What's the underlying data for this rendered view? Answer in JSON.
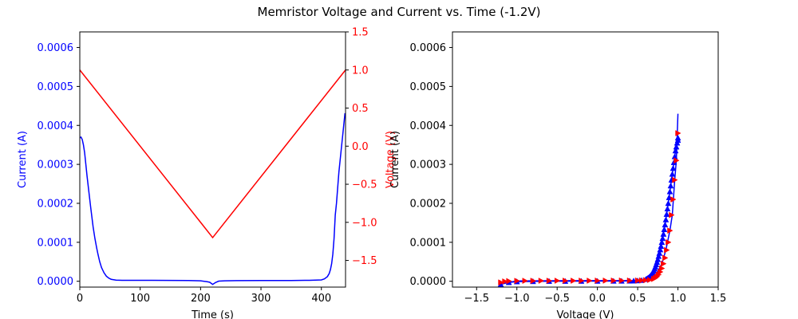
{
  "figure": {
    "title": "Memristor Voltage and Current vs. Time (-1.2V)"
  },
  "colors": {
    "current": "#0000ff",
    "voltage": "#ff0000",
    "axis": "#000000"
  },
  "chart_data": [
    {
      "type": "line",
      "title": "",
      "xlabel": "Time (s)",
      "ylabel": "Current (A)",
      "ylabel_right": "Voltage (V)",
      "xlim": [
        0,
        440
      ],
      "ylim": [
        -1.5e-05,
        0.00064
      ],
      "ylim_right": [
        -1.85,
        1.5
      ],
      "xticks": [
        0,
        100,
        200,
        300,
        400
      ],
      "yticks": [
        0.0,
        0.0001,
        0.0002,
        0.0003,
        0.0004,
        0.0005,
        0.0006
      ],
      "yticks_right": [
        -1.5,
        -1.0,
        -0.5,
        0.0,
        0.5,
        1.0,
        1.5
      ],
      "yticklabels": [
        "0.0000",
        "0.0001",
        "0.0002",
        "0.0003",
        "0.0004",
        "0.0005",
        "0.0006"
      ],
      "yticklabels_right": [
        "−1.5",
        "−1.0",
        "−0.5",
        "0.0",
        "0.5",
        "1.0",
        "1.5"
      ],
      "grid": false,
      "series": [
        {
          "axis": "left",
          "color": "#0000ff",
          "x": [
            0,
            2,
            4,
            6,
            8,
            10,
            12,
            15,
            18,
            20,
            22,
            25,
            28,
            30,
            33,
            36,
            40,
            44,
            48,
            52,
            56,
            60,
            70,
            80,
            100,
            120,
            150,
            180,
            200,
            210,
            215,
            220,
            225,
            230,
            240,
            260,
            300,
            350,
            380,
            400,
            405,
            410,
            413,
            415,
            417,
            419,
            421,
            423,
            425,
            427,
            429,
            431,
            433,
            435,
            437,
            439,
            440
          ],
          "y": [
            0.000368,
            0.00037,
            0.000364,
            0.00035,
            0.00033,
            0.0003,
            0.00027,
            0.00023,
            0.00019,
            0.000165,
            0.00014,
            0.00011,
            8.5e-05,
            7e-05,
            5e-05,
            3.5e-05,
            2.2e-05,
            1.3e-05,
            8e-06,
            5e-06,
            4e-06,
            3e-06,
            2.5e-06,
            2.5e-06,
            2.5e-06,
            2.5e-06,
            2.2e-06,
            1.8e-06,
            1.2e-06,
            -1e-06,
            -2.5e-06,
            -8e-06,
            -3e-06,
            3e-07,
            1.2e-06,
            1.6e-06,
            1.8e-06,
            2e-06,
            2.5e-06,
            3.5e-06,
            6e-06,
            1.2e-05,
            2e-05,
            3e-05,
            4.5e-05,
            7e-05,
            0.00011,
            0.00017,
            0.0002,
            0.00024,
            0.00028,
            0.00031,
            0.00034,
            0.00037,
            0.0004,
            0.00043,
            0.00043
          ]
        },
        {
          "axis": "right",
          "color": "#ff0000",
          "x": [
            0,
            220,
            440
          ],
          "y": [
            1.0,
            -1.2,
            1.0
          ]
        }
      ]
    },
    {
      "type": "scatter",
      "title": "",
      "xlabel": "Voltage (V)",
      "ylabel": "Current (A)",
      "xlim": [
        -1.8,
        1.5
      ],
      "ylim": [
        -1.5e-05,
        0.00064
      ],
      "xticks": [
        -1.5,
        -1.0,
        -0.5,
        0.0,
        0.5,
        1.0,
        1.5
      ],
      "xticklabels": [
        "−1.5",
        "−1.0",
        "−0.5",
        "0.0",
        "0.5",
        "1.0",
        "1.5"
      ],
      "yticks": [
        0.0,
        0.0001,
        0.0002,
        0.0003,
        0.0004,
        0.0005,
        0.0006
      ],
      "yticklabels": [
        "0.0000",
        "0.0001",
        "0.0002",
        "0.0003",
        "0.0004",
        "0.0005",
        "0.0006"
      ],
      "grid": false,
      "series": [
        {
          "color": "#0000ff",
          "marker": "triangle",
          "x": [
            1.0,
            1.0,
            0.99,
            0.98,
            0.97,
            0.96,
            0.95,
            0.94,
            0.93,
            0.92,
            0.91,
            0.9,
            0.89,
            0.88,
            0.87,
            0.86,
            0.85,
            0.84,
            0.83,
            0.82,
            0.81,
            0.8,
            0.79,
            0.78,
            0.77,
            0.76,
            0.75,
            0.74,
            0.73,
            0.72,
            0.71,
            0.7,
            0.69,
            0.68,
            0.67,
            0.66,
            0.65,
            0.64,
            0.63,
            0.62,
            0.61,
            0.6,
            0.55,
            0.5,
            0.45,
            0.4,
            0.3,
            0.2,
            0.0,
            -0.2,
            -0.4,
            -0.6,
            -0.8,
            -1.0,
            -1.1,
            -1.2
          ],
          "y": [
            0.000368,
            0.000362,
            0.000355,
            0.000345,
            0.000335,
            0.00032,
            0.000305,
            0.00029,
            0.000275,
            0.00026,
            0.000245,
            0.00023,
            0.000215,
            0.0002,
            0.000186,
            0.000172,
            0.000158,
            0.000145,
            0.000133,
            0.000121,
            0.00011,
            0.0001,
            9e-05,
            8.1e-05,
            7.2e-05,
            6.4e-05,
            5.6e-05,
            4.9e-05,
            4.3e-05,
            3.7e-05,
            3.2e-05,
            2.7e-05,
            2.3e-05,
            2e-05,
            1.7e-05,
            1.4e-05,
            1.2e-05,
            1e-05,
            8.5e-06,
            7e-06,
            5.8e-06,
            4.8e-06,
            2.5e-06,
            1.5e-06,
            1e-06,
            8e-07,
            6e-07,
            5e-07,
            4e-07,
            3e-07,
            2e-07,
            1e-07,
            -5e-07,
            -1e-06,
            -3e-06,
            -8e-06
          ]
        },
        {
          "color": "#ff0000",
          "marker": "triangle",
          "x": [
            -1.2,
            -1.15,
            -1.1,
            -1.0,
            -0.9,
            -0.8,
            -0.7,
            -0.6,
            -0.5,
            -0.4,
            -0.3,
            -0.2,
            -0.1,
            0.0,
            0.1,
            0.2,
            0.3,
            0.4,
            0.5,
            0.55,
            0.6,
            0.65,
            0.7,
            0.72,
            0.74,
            0.76,
            0.78,
            0.8,
            0.82,
            0.84,
            0.86,
            0.88,
            0.9,
            0.92,
            0.94,
            0.96,
            0.98,
            1.0
          ],
          "y": [
            -3e-06,
            -5e-07,
            5e-07,
            1e-06,
            1.2e-06,
            1.2e-06,
            1.3e-06,
            1.3e-06,
            1.4e-06,
            1.4e-06,
            1.4e-06,
            1.5e-06,
            1.5e-06,
            1.6e-06,
            1.6e-06,
            1.7e-06,
            1.8e-06,
            1.8e-06,
            2e-06,
            2.2e-06,
            2.8e-06,
            3.5e-06,
            6e-06,
            8.5e-06,
            1.2e-05,
            1.7e-05,
            2.4e-05,
            3.3e-05,
            4.5e-05,
            6e-05,
            8e-05,
            0.0001,
            0.00013,
            0.00017,
            0.00021,
            0.00026,
            0.00031,
            0.00038
          ]
        },
        {
          "color": "#0000ff",
          "marker": "none",
          "x": [
            1.0,
            1.0,
            0.99,
            0.98,
            0.97,
            0.96,
            0.95,
            0.94,
            0.93,
            0.92,
            0.91,
            0.9,
            0.89,
            0.88,
            0.87,
            0.86,
            0.85,
            0.84,
            0.83,
            0.82,
            0.81,
            0.8,
            0.79,
            0.78,
            0.77,
            0.76,
            0.75,
            0.74,
            0.73,
            0.72,
            0.71,
            0.7,
            0.69,
            0.68,
            0.67,
            0.66,
            0.65,
            0.64,
            0.63,
            0.62,
            0.61,
            0.6,
            0.55,
            0.5,
            0.45,
            0.4,
            0.3,
            0.2,
            0.0,
            -0.2,
            -0.4,
            -0.6,
            -0.8,
            -1.0,
            -1.1,
            -1.2,
            -1.1,
            -1.0,
            -0.5,
            0.0,
            0.5,
            0.6,
            0.7,
            0.8,
            0.85,
            0.9,
            0.93,
            0.96,
            0.98,
            1.0
          ],
          "y": [
            0.000368,
            0.000362,
            0.000355,
            0.000345,
            0.000335,
            0.00032,
            0.000305,
            0.00029,
            0.000275,
            0.00026,
            0.000245,
            0.00023,
            0.000215,
            0.0002,
            0.000186,
            0.000172,
            0.000158,
            0.000145,
            0.000133,
            0.000121,
            0.00011,
            0.0001,
            9e-05,
            8.1e-05,
            7.2e-05,
            6.4e-05,
            5.6e-05,
            4.9e-05,
            4.3e-05,
            3.7e-05,
            3.2e-05,
            2.7e-05,
            2.3e-05,
            2e-05,
            1.7e-05,
            1.4e-05,
            1.2e-05,
            1e-05,
            8.5e-06,
            7e-06,
            5.8e-06,
            4.8e-06,
            2.5e-06,
            1.5e-06,
            1e-06,
            8e-07,
            6e-07,
            5e-07,
            4e-07,
            3e-07,
            2e-07,
            1e-07,
            -5e-07,
            -1e-06,
            -3e-06,
            -8e-06,
            -3e-06,
            8e-07,
            1.4e-06,
            1.6e-06,
            2e-06,
            3.5e-06,
            6e-06,
            4.5e-05,
            8e-05,
            0.00013,
            0.00017,
            0.00026,
            0.00031,
            0.00043
          ]
        }
      ]
    }
  ]
}
